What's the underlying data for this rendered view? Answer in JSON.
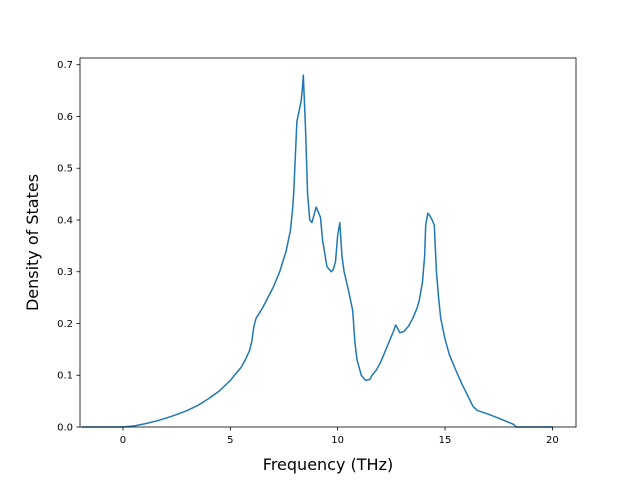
{
  "chart_data": {
    "type": "line",
    "title": "",
    "xlabel": "Frequency (THz)",
    "ylabel": "Density of States",
    "xlim": [
      -2.0,
      21.1
    ],
    "ylim": [
      0.0,
      0.713
    ],
    "xticks": [
      0,
      5,
      10,
      15,
      20
    ],
    "xtick_labels": [
      "0",
      "5",
      "10",
      "15",
      "20"
    ],
    "yticks": [
      0.0,
      0.1,
      0.2,
      0.3,
      0.4,
      0.5,
      0.6,
      0.7
    ],
    "ytick_labels": [
      "0.0",
      "0.1",
      "0.2",
      "0.3",
      "0.4",
      "0.5",
      "0.6",
      "0.7"
    ],
    "grid": false,
    "color": "#1f77b4",
    "series": [
      {
        "x": [
          -1.9,
          0.0,
          0.5,
          1.0,
          1.5,
          2.0,
          2.5,
          3.0,
          3.5,
          4.0,
          4.5,
          5.0,
          5.3,
          5.5,
          5.7,
          5.9,
          6.0,
          6.1,
          6.2,
          6.5,
          7.0,
          7.3,
          7.6,
          7.8,
          7.9,
          7.95,
          8.1,
          8.2,
          8.3,
          8.35,
          8.4,
          8.5,
          8.6,
          8.7,
          8.8,
          8.9,
          9.0,
          9.2,
          9.3,
          9.5,
          9.7,
          9.8,
          9.9,
          10.0,
          10.1,
          10.2,
          10.3,
          10.5,
          10.7,
          10.8,
          10.9,
          11.1,
          11.3,
          11.5,
          11.6,
          11.8,
          12.0,
          12.2,
          12.4,
          12.6,
          12.7,
          12.8,
          12.9,
          13.1,
          13.3,
          13.5,
          13.7,
          13.8,
          13.95,
          14.05,
          14.1,
          14.2,
          14.3,
          14.4,
          14.5,
          14.6,
          14.7,
          14.8,
          15.0,
          15.2,
          15.5,
          15.8,
          16.1,
          16.3,
          16.5,
          17.0,
          17.5,
          17.9,
          18.2,
          18.3,
          20.0
        ],
        "y": [
          0.0,
          0.0,
          0.002,
          0.006,
          0.011,
          0.017,
          0.024,
          0.032,
          0.042,
          0.055,
          0.07,
          0.09,
          0.105,
          0.115,
          0.13,
          0.148,
          0.165,
          0.195,
          0.21,
          0.23,
          0.27,
          0.3,
          0.34,
          0.38,
          0.42,
          0.45,
          0.59,
          0.61,
          0.63,
          0.65,
          0.68,
          0.58,
          0.45,
          0.4,
          0.395,
          0.41,
          0.425,
          0.405,
          0.36,
          0.31,
          0.3,
          0.305,
          0.32,
          0.37,
          0.395,
          0.33,
          0.3,
          0.265,
          0.225,
          0.165,
          0.13,
          0.1,
          0.09,
          0.092,
          0.1,
          0.11,
          0.125,
          0.145,
          0.165,
          0.185,
          0.197,
          0.19,
          0.182,
          0.185,
          0.195,
          0.21,
          0.23,
          0.245,
          0.28,
          0.33,
          0.39,
          0.413,
          0.408,
          0.4,
          0.39,
          0.3,
          0.25,
          0.21,
          0.17,
          0.14,
          0.11,
          0.082,
          0.057,
          0.04,
          0.032,
          0.025,
          0.017,
          0.01,
          0.005,
          0.0,
          0.0
        ]
      }
    ]
  }
}
